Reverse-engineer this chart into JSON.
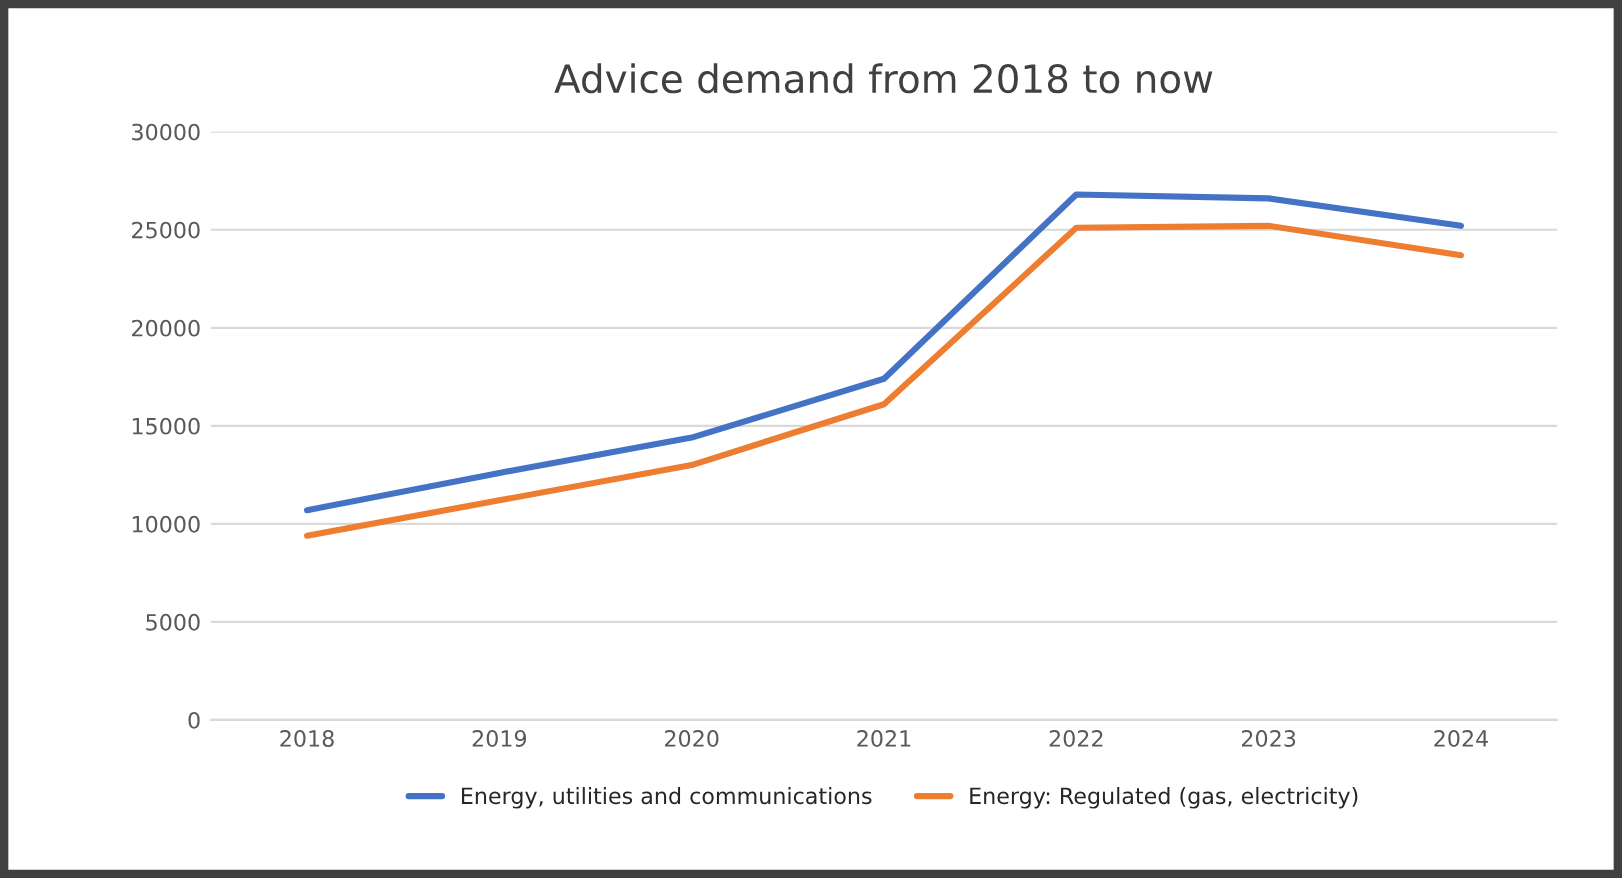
{
  "chart_data": {
    "type": "line",
    "title": "Advice demand from 2018 to now",
    "categories": [
      "2018",
      "2019",
      "2020",
      "2021",
      "2022",
      "2023",
      "2024"
    ],
    "series": [
      {
        "name": "Energy, utilities and communications",
        "color": "#4472c4",
        "values": [
          10700,
          12600,
          14400,
          17400,
          26800,
          26600,
          25200
        ]
      },
      {
        "name": "Energy: Regulated (gas, electricity)",
        "color": "#ed7d31",
        "values": [
          9400,
          11200,
          13000,
          16100,
          25100,
          25200,
          23700
        ]
      }
    ],
    "ylim": [
      0,
      30000
    ],
    "yticks": [
      0,
      5000,
      10000,
      15000,
      20000,
      25000,
      30000
    ],
    "grid": "y",
    "legend": "bottom",
    "marker": "none",
    "line_style": "solid"
  }
}
